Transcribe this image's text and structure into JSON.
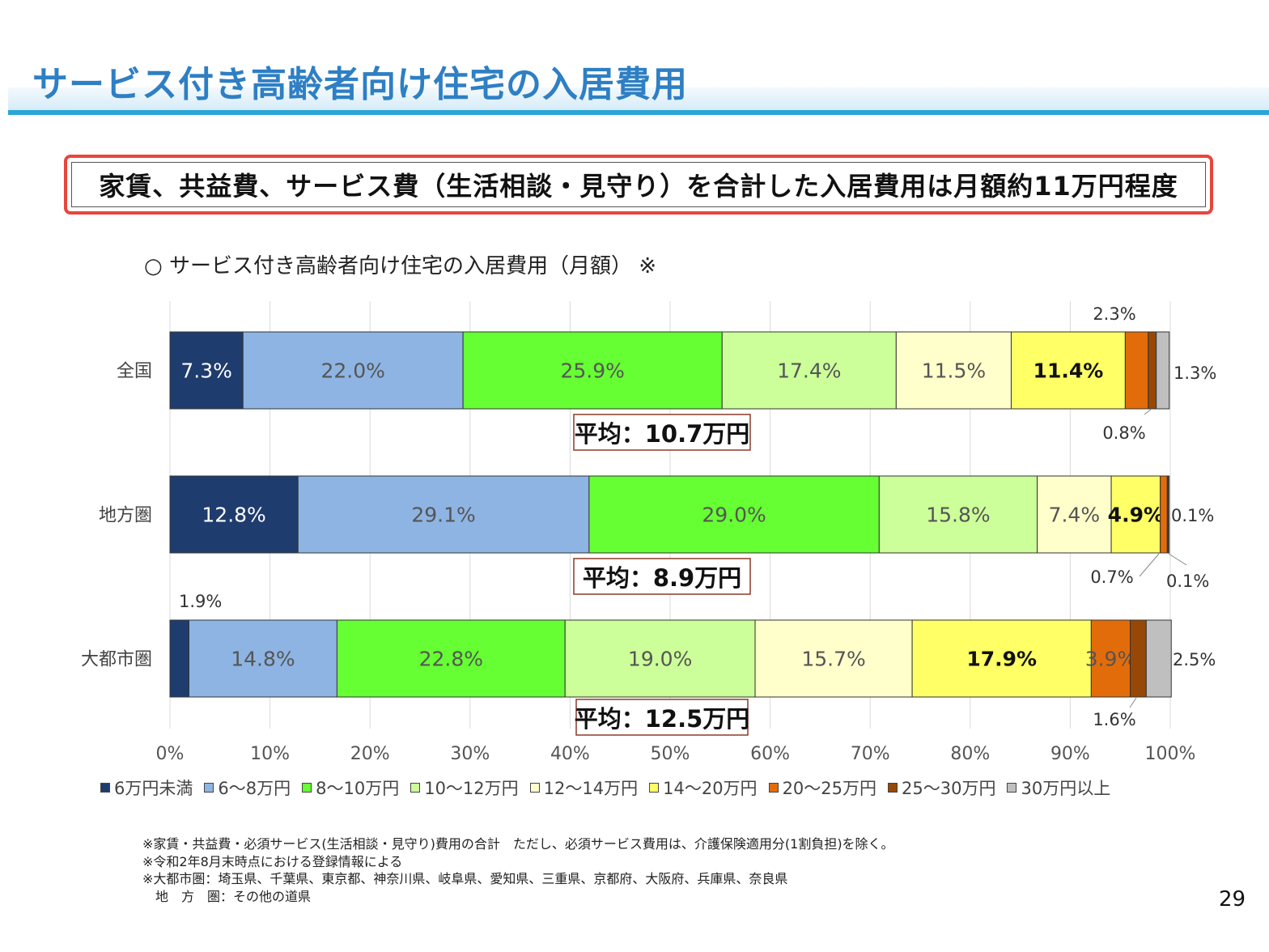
{
  "page": {
    "title": "サービス付き高齢者向け住宅の入居費用",
    "summary": "家賃、共益費、サービス費（生活相談・見守り）を合計した入居費用は月額約11万円程度",
    "number": "29"
  },
  "chart_data": {
    "type": "bar",
    "orientation": "horizontal",
    "stacked": true,
    "title": "○ サービス付き高齢者向け住宅の入居費用（月額） ※",
    "categories": [
      "全国",
      "地方圏",
      "大都市圏"
    ],
    "series": [
      {
        "name": "6万円未満",
        "color": "#1f3c6e",
        "values": [
          7.3,
          12.8,
          1.9
        ],
        "labels": [
          "7.3%",
          "12.8%",
          "1.9%"
        ]
      },
      {
        "name": "6～8万円",
        "color": "#8eb4e3",
        "values": [
          22.0,
          29.1,
          14.8
        ],
        "labels": [
          "22.0%",
          "29.1%",
          "14.8%"
        ]
      },
      {
        "name": "8～10万円",
        "color": "#66ff33",
        "values": [
          25.9,
          29.0,
          22.8
        ],
        "labels": [
          "25.9%",
          "29.0%",
          "22.8%"
        ]
      },
      {
        "name": "10～12万円",
        "color": "#ccff99",
        "values": [
          17.4,
          15.8,
          19.0
        ],
        "labels": [
          "17.4%",
          "15.8%",
          "19.0%"
        ]
      },
      {
        "name": "12～14万円",
        "color": "#ffffcc",
        "values": [
          11.5,
          7.4,
          15.7
        ],
        "labels": [
          "11.5%",
          "7.4%",
          "15.7%"
        ]
      },
      {
        "name": "14～20万円",
        "color": "#ffff66",
        "values": [
          11.4,
          4.9,
          17.9
        ],
        "labels": [
          "11.4%",
          "4.9%",
          "17.9%"
        ]
      },
      {
        "name": "20～25万円",
        "color": "#e36c0a",
        "values": [
          2.3,
          0.7,
          3.9
        ],
        "labels": [
          "2.3%",
          "0.7%",
          "3.9%"
        ]
      },
      {
        "name": "25～30万円",
        "color": "#974806",
        "values": [
          0.8,
          0.1,
          1.6
        ],
        "labels": [
          "0.8%",
          "0.1%",
          "1.6%"
        ]
      },
      {
        "name": "30万円以上",
        "color": "#bfbfbf",
        "values": [
          1.3,
          0.1,
          2.5
        ],
        "labels": [
          "1.3%",
          "0.1%",
          "2.5%"
        ]
      }
    ],
    "averages": [
      "平均：10.7万円",
      "平均：8.9万円",
      "平均：12.5万円"
    ],
    "xlim": [
      0,
      100
    ],
    "xticks": [
      "0%",
      "10%",
      "20%",
      "30%",
      "40%",
      "50%",
      "60%",
      "70%",
      "80%",
      "90%",
      "100%"
    ],
    "grid": true,
    "legend": "bottom"
  },
  "notes": [
    "※家賃・共益費・必須サービス(生活相談・見守り)費用の合計　ただし、必須サービス費用は、介護保険適用分(1割負担)を除く。",
    "※令和2年8月末時点における登録情報による",
    "※大都市圏：埼玉県、千葉県、東京都、神奈川県、岐阜県、愛知県、三重県、京都府、大阪府、兵庫県、奈良県",
    "　地　方　圏：その他の道県"
  ]
}
